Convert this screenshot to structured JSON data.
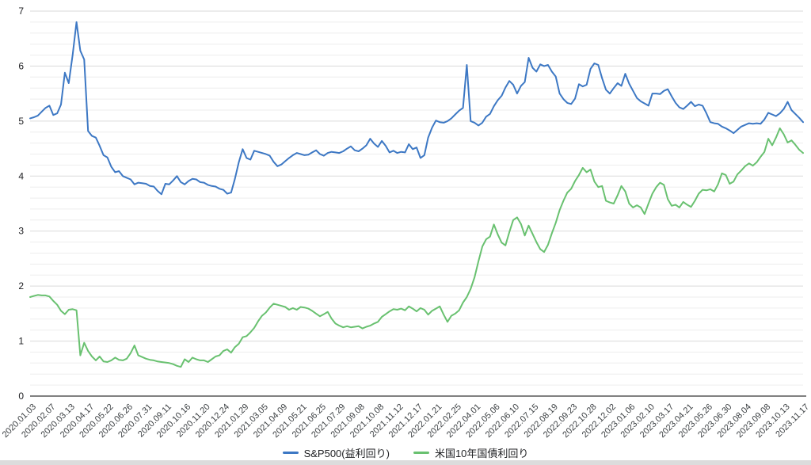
{
  "chart_data": {
    "type": "line",
    "title": "",
    "xlabel": "",
    "ylabel": "",
    "ylim": [
      0,
      7
    ],
    "y_ticks": [
      0,
      1,
      2,
      3,
      4,
      5,
      6,
      7
    ],
    "minor_grid_step": 0.2,
    "grid": "on",
    "legend_position": "bottom-center",
    "x_label_interval": 5,
    "x_labels": [
      "2020.01.03",
      "2020.02.07",
      "2020.03.13",
      "2020.04.17",
      "2020.05.22",
      "2020.06.26",
      "2020.07.31",
      "2020.09.11",
      "2020.10.16",
      "2020.11.20",
      "2020.12.24",
      "2021.01.29",
      "2021.03.05",
      "2021.04.09",
      "2021.05.21",
      "2021.06.25",
      "2021.07.29",
      "2021.09.08",
      "2021.10.08",
      "2021.11.12",
      "2021.12.17",
      "2022.01.21",
      "2022.02.25",
      "2022.04.01",
      "2022.05.06",
      "2022.06.10",
      "2022.07.15",
      "2022.08.19",
      "2022.09.23",
      "2022.10.28",
      "2022.12.02",
      "2023.01.06",
      "2023.02.10",
      "2023.03.17",
      "2023.04.21",
      "2023.05.26",
      "2023.06.30",
      "2023.08.04",
      "2023.09.08",
      "2023.10.13",
      "2023.11.17"
    ],
    "series": [
      {
        "name": "S&P500(益利回り)",
        "color": "#3d78c4",
        "values": [
          5.05,
          5.07,
          5.1,
          5.17,
          5.24,
          5.28,
          5.11,
          5.14,
          5.3,
          5.88,
          5.69,
          6.2,
          6.8,
          6.28,
          6.12,
          4.82,
          4.73,
          4.7,
          4.55,
          4.38,
          4.34,
          4.17,
          4.07,
          4.09,
          4.0,
          3.97,
          3.94,
          3.85,
          3.88,
          3.87,
          3.86,
          3.82,
          3.81,
          3.73,
          3.67,
          3.86,
          3.85,
          3.92,
          4.0,
          3.89,
          3.85,
          3.91,
          3.95,
          3.94,
          3.89,
          3.88,
          3.84,
          3.82,
          3.81,
          3.77,
          3.75,
          3.68,
          3.7,
          3.95,
          4.25,
          4.49,
          4.33,
          4.3,
          4.46,
          4.44,
          4.42,
          4.4,
          4.37,
          4.26,
          4.18,
          4.21,
          4.27,
          4.33,
          4.38,
          4.42,
          4.4,
          4.38,
          4.39,
          4.43,
          4.47,
          4.4,
          4.37,
          4.42,
          4.44,
          4.43,
          4.42,
          4.45,
          4.5,
          4.54,
          4.47,
          4.45,
          4.5,
          4.56,
          4.68,
          4.59,
          4.53,
          4.64,
          4.55,
          4.43,
          4.46,
          4.42,
          4.44,
          4.43,
          4.58,
          4.49,
          4.52,
          4.33,
          4.38,
          4.7,
          4.88,
          5.01,
          4.98,
          4.97,
          5.0,
          5.05,
          5.12,
          5.19,
          5.24,
          6.02,
          5.0,
          4.97,
          4.92,
          4.97,
          5.08,
          5.13,
          5.27,
          5.38,
          5.46,
          5.61,
          5.73,
          5.66,
          5.5,
          5.64,
          5.71,
          6.15,
          5.97,
          5.9,
          6.03,
          6.0,
          6.02,
          5.9,
          5.81,
          5.5,
          5.4,
          5.33,
          5.31,
          5.41,
          5.67,
          5.63,
          5.66,
          5.95,
          6.05,
          6.02,
          5.78,
          5.57,
          5.5,
          5.6,
          5.69,
          5.64,
          5.86,
          5.68,
          5.55,
          5.42,
          5.36,
          5.32,
          5.28,
          5.5,
          5.5,
          5.49,
          5.55,
          5.58,
          5.45,
          5.33,
          5.25,
          5.22,
          5.28,
          5.35,
          5.27,
          5.3,
          5.28,
          5.14,
          4.98,
          4.96,
          4.95,
          4.9,
          4.87,
          4.83,
          4.78,
          4.84,
          4.9,
          4.93,
          4.96,
          4.95,
          4.96,
          4.95,
          5.03,
          5.15,
          5.12,
          5.09,
          5.14,
          5.22,
          5.35,
          5.2,
          5.13,
          5.06,
          4.98
        ]
      },
      {
        "name": "米国10年国債利回り",
        "color": "#69c170",
        "values": [
          1.8,
          1.82,
          1.84,
          1.83,
          1.83,
          1.81,
          1.73,
          1.66,
          1.55,
          1.49,
          1.57,
          1.58,
          1.56,
          0.74,
          0.97,
          0.82,
          0.72,
          0.65,
          0.72,
          0.63,
          0.62,
          0.65,
          0.7,
          0.66,
          0.65,
          0.68,
          0.78,
          0.92,
          0.74,
          0.71,
          0.68,
          0.66,
          0.65,
          0.63,
          0.62,
          0.61,
          0.6,
          0.58,
          0.55,
          0.53,
          0.67,
          0.62,
          0.7,
          0.67,
          0.65,
          0.65,
          0.62,
          0.67,
          0.72,
          0.74,
          0.82,
          0.85,
          0.79,
          0.89,
          0.95,
          1.07,
          1.09,
          1.16,
          1.24,
          1.36,
          1.46,
          1.52,
          1.61,
          1.68,
          1.66,
          1.64,
          1.62,
          1.57,
          1.6,
          1.57,
          1.62,
          1.61,
          1.59,
          1.55,
          1.5,
          1.45,
          1.49,
          1.53,
          1.41,
          1.32,
          1.28,
          1.25,
          1.27,
          1.25,
          1.26,
          1.27,
          1.23,
          1.26,
          1.28,
          1.32,
          1.35,
          1.44,
          1.49,
          1.54,
          1.58,
          1.57,
          1.59,
          1.56,
          1.63,
          1.59,
          1.54,
          1.6,
          1.57,
          1.48,
          1.55,
          1.59,
          1.63,
          1.48,
          1.35,
          1.46,
          1.5,
          1.56,
          1.7,
          1.8,
          1.95,
          2.16,
          2.45,
          2.72,
          2.85,
          2.9,
          3.12,
          2.94,
          2.79,
          2.74,
          2.98,
          3.2,
          3.25,
          3.13,
          2.92,
          3.1,
          2.95,
          2.8,
          2.67,
          2.62,
          2.75,
          2.96,
          3.15,
          3.38,
          3.55,
          3.7,
          3.77,
          3.91,
          4.02,
          4.15,
          4.07,
          4.12,
          3.9,
          3.8,
          3.82,
          3.55,
          3.52,
          3.5,
          3.65,
          3.82,
          3.72,
          3.5,
          3.43,
          3.47,
          3.43,
          3.31,
          3.5,
          3.68,
          3.8,
          3.88,
          3.84,
          3.58,
          3.46,
          3.48,
          3.43,
          3.53,
          3.48,
          3.44,
          3.55,
          3.68,
          3.75,
          3.74,
          3.76,
          3.72,
          3.85,
          4.05,
          4.02,
          3.86,
          3.9,
          4.03,
          4.1,
          4.18,
          4.23,
          4.19,
          4.25,
          4.35,
          4.44,
          4.68,
          4.56,
          4.7,
          4.87,
          4.76,
          4.61,
          4.65,
          4.57,
          4.48,
          4.42
        ]
      }
    ]
  }
}
